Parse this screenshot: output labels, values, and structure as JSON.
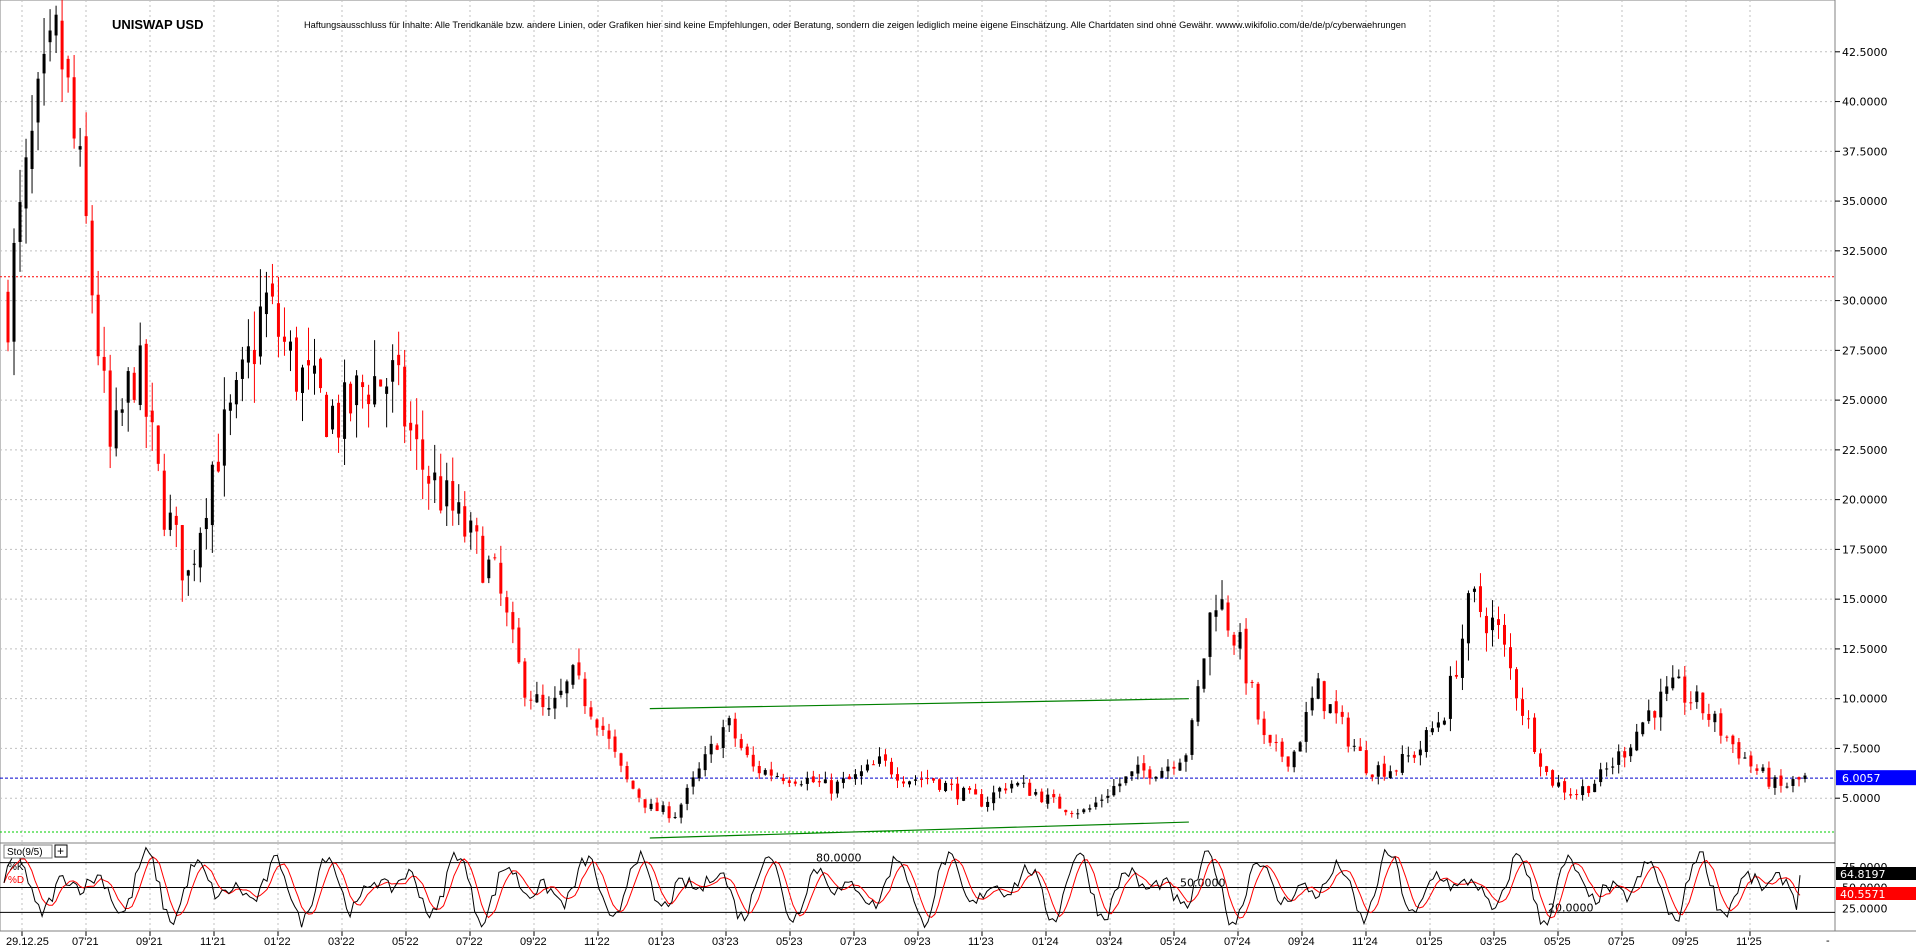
{
  "header": {
    "symbol": "UNISWAP USD",
    "disclaimer": "Haftungsausschluss für Inhalte: Alle Trendkanäle bzw. andere Linien, oder Grafiken hier sind keine Empfehlungen, oder Beratung, sondern die zeigen lediglich meine eigene Einschätzung. Alle Chartdaten sind ohne Gewähr.  wwww.wikifolio.com/de/de/p/cyberwaehrungen"
  },
  "colors": {
    "up_candle": "#000000",
    "down_candle": "#ff0000",
    "trend_lines": "#008000",
    "current_price_line": "#0000cc",
    "current_price_badge": "#0000ff",
    "k_line": "#000000",
    "d_line": "#ff0000",
    "k_badge": "#000000",
    "d_badge": "#ff0000",
    "grid": "#c0c0c0"
  },
  "chart_data": [
    {
      "type": "candlestick",
      "title": "UNISWAP USD",
      "ylim": [
        3.0,
        44.5
      ],
      "y_ticks": [
        "5.0000",
        "7.5000",
        "10.0000",
        "12.5000",
        "15.0000",
        "17.5000",
        "20.0000",
        "22.5000",
        "25.0000",
        "27.5000",
        "30.0000",
        "32.5000",
        "35.0000",
        "37.5000",
        "40.0000",
        "42.5000"
      ],
      "x_ticks": [
        "29.12.25",
        "07'21",
        "09'21",
        "11'21",
        "01'22",
        "03'22",
        "05'22",
        "07'22",
        "09'22",
        "11'22",
        "01'23",
        "03'23",
        "05'23",
        "07'23",
        "09'23",
        "11'23",
        "01'24",
        "03'24",
        "05'24",
        "07'24",
        "09'24",
        "11'24",
        "01'25",
        "03'25",
        "05'25",
        "07'25",
        "09'25",
        "11'25"
      ],
      "anchors": [
        {
          "label": "2021-05",
          "close": 30
        },
        {
          "label": "2021-05b",
          "close": 38
        },
        {
          "label": "2021-05c",
          "close": 43
        },
        {
          "label": "2021-06",
          "close": 34
        },
        {
          "label": "2021-06b",
          "close": 22
        },
        {
          "label": "2021-06c",
          "close": 27
        },
        {
          "label": "2021-07",
          "close": 20
        },
        {
          "label": "2021-07b",
          "close": 16
        },
        {
          "label": "2021-08",
          "close": 22
        },
        {
          "label": "2021-08b",
          "close": 25
        },
        {
          "label": "2021-09",
          "close": 30
        },
        {
          "label": "2021-09b",
          "close": 27
        },
        {
          "label": "2021-10",
          "close": 25
        },
        {
          "label": "2021-10b",
          "close": 24
        },
        {
          "label": "2021-11",
          "close": 26
        },
        {
          "label": "2021-11b",
          "close": 26
        },
        {
          "label": "2021-12",
          "close": 22
        },
        {
          "label": "2021-12b",
          "close": 20
        },
        {
          "label": "2022-01",
          "close": 18
        },
        {
          "label": "2022-01b",
          "close": 16
        },
        {
          "label": "2022-02",
          "close": 11
        },
        {
          "label": "2022-03",
          "close": 9
        },
        {
          "label": "2022-03b",
          "close": 11
        },
        {
          "label": "2022-04",
          "close": 9
        },
        {
          "label": "2022-05",
          "close": 6
        },
        {
          "label": "2022-06",
          "close": 4.5
        },
        {
          "label": "2022-06b",
          "close": 4.2
        },
        {
          "label": "2022-07",
          "close": 6.5
        },
        {
          "label": "2022-08",
          "close": 8.8
        },
        {
          "label": "2022-09",
          "close": 6.5
        },
        {
          "label": "2022-10",
          "close": 6.2
        },
        {
          "label": "2022-11",
          "close": 6.0
        },
        {
          "label": "2022-12",
          "close": 5.5
        },
        {
          "label": "2023-01",
          "close": 6.0
        },
        {
          "label": "2023-02",
          "close": 6.8
        },
        {
          "label": "2023-03",
          "close": 6.0
        },
        {
          "label": "2023-04",
          "close": 6.0
        },
        {
          "label": "2023-05",
          "close": 5.3
        },
        {
          "label": "2023-06",
          "close": 4.8
        },
        {
          "label": "2023-07",
          "close": 5.8
        },
        {
          "label": "2023-08",
          "close": 5.3
        },
        {
          "label": "2023-09",
          "close": 4.6
        },
        {
          "label": "2023-10",
          "close": 4.3
        },
        {
          "label": "2023-11",
          "close": 5.5
        },
        {
          "label": "2023-12",
          "close": 6.3
        },
        {
          "label": "2024-01",
          "close": 6.5
        },
        {
          "label": "2024-02",
          "close": 7.5
        },
        {
          "label": "2024-03",
          "close": 15.5
        },
        {
          "label": "2024-03b",
          "close": 12.5
        },
        {
          "label": "2024-04",
          "close": 7.5
        },
        {
          "label": "2024-05",
          "close": 7.0
        },
        {
          "label": "2024-06",
          "close": 10.5
        },
        {
          "label": "2024-07",
          "close": 8.5
        },
        {
          "label": "2024-08",
          "close": 6.5
        },
        {
          "label": "2024-09",
          "close": 6.5
        },
        {
          "label": "2024-10",
          "close": 7.5
        },
        {
          "label": "2024-11",
          "close": 9.5
        },
        {
          "label": "2024-12",
          "close": 15.0
        },
        {
          "label": "2025-01",
          "close": 13.5
        },
        {
          "label": "2025-02",
          "close": 9.5
        },
        {
          "label": "2025-03",
          "close": 6.0
        },
        {
          "label": "2025-04",
          "close": 5.2
        },
        {
          "label": "2025-05",
          "close": 6.0
        },
        {
          "label": "2025-06",
          "close": 7.5
        },
        {
          "label": "2025-07",
          "close": 9.5
        },
        {
          "label": "2025-08",
          "close": 10.5
        },
        {
          "label": "2025-09",
          "close": 9.5
        },
        {
          "label": "2025-10",
          "close": 8.0
        },
        {
          "label": "2025-11",
          "close": 6.5
        },
        {
          "label": "2025-12",
          "close": 5.5
        },
        {
          "label": "2025-12b",
          "close": 6.0
        }
      ],
      "trend_lines": [
        {
          "name": "upper channel",
          "from": {
            "label": "2022-06",
            "value": 9.5
          },
          "to": {
            "label": "2024-02",
            "value": 10.0
          }
        },
        {
          "name": "lower channel",
          "from": {
            "label": "2022-06",
            "value": 3.0
          },
          "to": {
            "label": "2024-02",
            "value": 3.8
          }
        }
      ],
      "reference_lines": [
        {
          "value": 31.2,
          "style": "dotted",
          "color": "#ff0000"
        },
        {
          "value": 3.3,
          "style": "dotted",
          "color": "#00cc00"
        }
      ],
      "current_price": 6.0057,
      "current_price_label": "6.0057"
    },
    {
      "type": "line",
      "title": "Sto(9/5)",
      "series": [
        {
          "name": "%K",
          "last": 64.8197,
          "last_label": "64.8197"
        },
        {
          "name": "%D",
          "last": 40.5571,
          "last_label": "40.5571"
        }
      ],
      "ylim": [
        0,
        100
      ],
      "levels": [
        {
          "value": 80,
          "label": "80.0000"
        },
        {
          "value": 50,
          "label": "50.0000"
        },
        {
          "value": 20,
          "label": "20.0000"
        }
      ],
      "y_ticks": [
        "25.0000",
        "50.0000",
        "75.0000"
      ]
    }
  ]
}
